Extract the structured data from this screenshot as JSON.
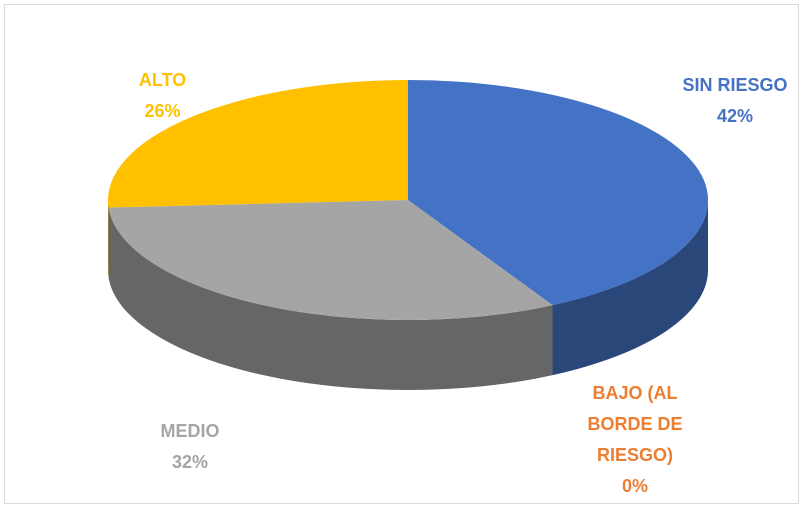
{
  "chart_data": {
    "type": "pie",
    "categories": [
      "SIN RIESGO",
      "BAJO (AL BORDE DE RIESGO)",
      "MEDIO",
      "ALTO"
    ],
    "values": [
      42,
      0,
      32,
      26
    ],
    "value_labels": [
      "42%",
      "0%",
      "32%",
      "26%"
    ],
    "colors": [
      "#4472c4",
      "#ed7d31",
      "#a5a5a5",
      "#ffc000"
    ]
  }
}
